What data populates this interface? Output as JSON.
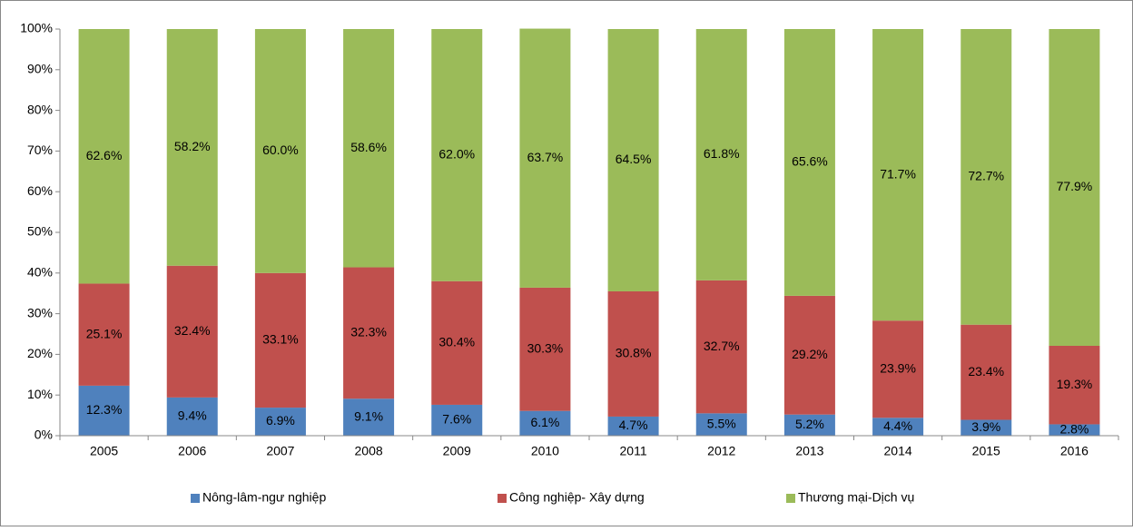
{
  "chart_data": {
    "type": "stacked_bar",
    "categories": [
      "2005",
      "2006",
      "2007",
      "2008",
      "2009",
      "2010",
      "2011",
      "2012",
      "2013",
      "2014",
      "2015",
      "2016"
    ],
    "series": [
      {
        "name": "Nông-lâm-ngư  nghiệp",
        "color": "#4f81bd",
        "values": [
          12.3,
          9.4,
          6.9,
          9.1,
          7.6,
          6.1,
          4.7,
          5.5,
          5.2,
          4.4,
          3.9,
          2.8
        ],
        "value_labels": [
          "12.3%",
          "9.4%",
          "6.9%",
          "9.1%",
          "7.6%",
          "6.1%",
          "4.7%",
          "5.5%",
          "5.2%",
          "4.4%",
          "3.9%",
          "2.8%"
        ]
      },
      {
        "name": "Công nghiệp- Xây dựng",
        "color": "#c0504d",
        "values": [
          25.1,
          32.4,
          33.1,
          32.3,
          30.4,
          30.3,
          30.8,
          32.7,
          29.2,
          23.9,
          23.4,
          19.3
        ],
        "value_labels": [
          "25.1%",
          "32.4%",
          "33.1%",
          "32.3%",
          "30.4%",
          "30.3%",
          "30.8%",
          "32.7%",
          "29.2%",
          "23.9%",
          "23.4%",
          "19.3%"
        ]
      },
      {
        "name": "Thương mại-Dịch vụ",
        "color": "#9bbb59",
        "values": [
          62.6,
          58.2,
          60.0,
          58.6,
          62.0,
          63.7,
          64.5,
          61.8,
          65.6,
          71.7,
          72.7,
          77.9
        ],
        "value_labels": [
          "62.6%",
          "58.2%",
          "60.0%",
          "58.6%",
          "62.0%",
          "63.7%",
          "64.5%",
          "61.8%",
          "65.6%",
          "71.7%",
          "72.7%",
          "77.9%"
        ]
      }
    ],
    "ylim": [
      0,
      100
    ],
    "yticks": [
      {
        "value": 0,
        "label": "0%"
      },
      {
        "value": 10,
        "label": "10%"
      },
      {
        "value": 20,
        "label": "20%"
      },
      {
        "value": 30,
        "label": "30%"
      },
      {
        "value": 40,
        "label": "40%"
      },
      {
        "value": 50,
        "label": "50%"
      },
      {
        "value": 60,
        "label": "60%"
      },
      {
        "value": 70,
        "label": "70%"
      },
      {
        "value": 80,
        "label": "80%"
      },
      {
        "value": 90,
        "label": "90%"
      },
      {
        "value": 100,
        "label": "100%"
      }
    ],
    "grid": false,
    "legend": "bottom"
  }
}
